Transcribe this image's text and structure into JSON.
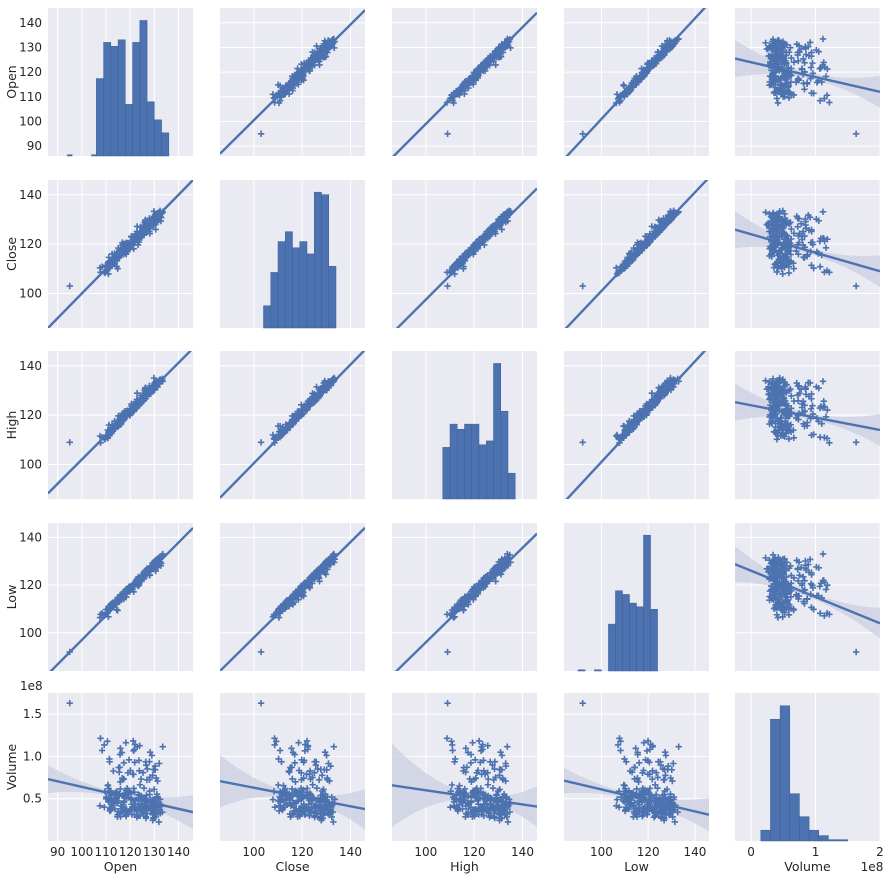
{
  "chart_data": {
    "type": "pairplot",
    "variables": [
      "Open",
      "Close",
      "High",
      "Low",
      "Volume"
    ],
    "volume_offset_label": "1e8",
    "colors": {
      "marker": "#4c72b0",
      "panel_bg": "#eaeaf2",
      "grid": "#ffffff",
      "ci_band": "#c7cde0"
    },
    "axes": {
      "Open": {
        "range": [
          86,
          146
        ],
        "ticks": [
          90,
          100,
          110,
          120,
          130,
          140
        ],
        "tick_labels": [
          "90",
          "100",
          "110",
          "120",
          "130",
          "140"
        ]
      },
      "Close": {
        "range": [
          86,
          146
        ],
        "ticks": [
          100,
          120,
          140
        ],
        "tick_labels": [
          "100",
          "120",
          "140"
        ]
      },
      "High": {
        "range": [
          86,
          146
        ],
        "ticks": [
          100,
          120,
          140
        ],
        "tick_labels": [
          "100",
          "120",
          "140"
        ]
      },
      "Low": {
        "range": [
          84,
          146
        ],
        "ticks": [
          100,
          120,
          140
        ],
        "tick_labels": [
          "100",
          "120",
          "140"
        ]
      },
      "Volume": {
        "range": [
          0.0,
          1.75
        ],
        "ticks": [
          0.5,
          1.0,
          1.5
        ],
        "tick_labels": [
          "0.5",
          "1.0",
          "1.5"
        ],
        "x_range": [
          -0.25,
          2.0
        ],
        "x_ticks": [
          0,
          1,
          2
        ],
        "x_tick_labels": [
          "0",
          "1",
          "2"
        ]
      }
    },
    "histograms": {
      "Open": {
        "bins": [
          [
            94,
            96,
            1
          ],
          [
            98,
            100,
            0
          ],
          [
            104,
            106,
            1
          ],
          [
            106,
            109,
            60
          ],
          [
            109,
            112,
            88
          ],
          [
            112,
            115,
            85
          ],
          [
            115,
            118,
            90
          ],
          [
            118,
            121,
            40
          ],
          [
            121,
            124,
            88
          ],
          [
            124,
            127,
            105
          ],
          [
            127,
            130,
            42
          ],
          [
            130,
            133,
            28
          ],
          [
            133,
            136,
            18
          ]
        ],
        "y_max": 110
      },
      "Close": {
        "bins": [
          [
            104,
            107,
            18
          ],
          [
            107,
            110,
            45
          ],
          [
            110,
            113,
            70
          ],
          [
            113,
            116,
            78
          ],
          [
            116,
            119,
            65
          ],
          [
            119,
            122,
            70
          ],
          [
            122,
            125,
            60
          ],
          [
            125,
            128,
            110
          ],
          [
            128,
            131,
            108
          ],
          [
            131,
            134,
            50
          ]
        ],
        "y_max": 115
      },
      "High": {
        "bins": [
          [
            107,
            110,
            40
          ],
          [
            110,
            113,
            58
          ],
          [
            113,
            116,
            54
          ],
          [
            116,
            119,
            58
          ],
          [
            119,
            122,
            58
          ],
          [
            122,
            125,
            42
          ],
          [
            125,
            128,
            45
          ],
          [
            128,
            131,
            105
          ],
          [
            131,
            134,
            68
          ],
          [
            134,
            137,
            20
          ]
        ],
        "y_max": 110
      },
      "Low": {
        "bins": [
          [
            90,
            93,
            1
          ],
          [
            97,
            100,
            1
          ],
          [
            100,
            103,
            0
          ],
          [
            103,
            106,
            38
          ],
          [
            106,
            109,
            65
          ],
          [
            109,
            112,
            62
          ],
          [
            112,
            115,
            55
          ],
          [
            115,
            118,
            52
          ],
          [
            118,
            121,
            110
          ],
          [
            121,
            124,
            50
          ],
          [
            124,
            127,
            0
          ]
        ],
        "y_max": 115
      },
      "Volume": {
        "bins": [
          [
            0.15,
            0.3,
            8
          ],
          [
            0.3,
            0.45,
            90
          ],
          [
            0.45,
            0.6,
            100
          ],
          [
            0.6,
            0.75,
            35
          ],
          [
            0.75,
            0.9,
            18
          ],
          [
            0.9,
            1.05,
            8
          ],
          [
            1.05,
            1.2,
            4
          ],
          [
            1.2,
            1.35,
            1
          ],
          [
            1.35,
            1.5,
            1
          ]
        ],
        "y_max": 105
      }
    },
    "regressions": {
      "Open|Close": {
        "slope": 0.97,
        "intercept": 3.5
      },
      "Open|High": {
        "slope": 0.98,
        "intercept": 1.0
      },
      "Open|Low": {
        "slope": 1.02,
        "intercept": -1.0
      },
      "Close|Open": {
        "slope": 1.0,
        "intercept": 0.0
      },
      "Close|High": {
        "slope": 0.98,
        "intercept": -0.5
      },
      "Close|Low": {
        "slope": 1.0,
        "intercept": 1.0
      },
      "High|Open": {
        "slope": 0.98,
        "intercept": 4.0
      },
      "High|Close": {
        "slope": 1.0,
        "intercept": 0.5
      },
      "High|Low": {
        "slope": 1.02,
        "intercept": -1.0
      },
      "Low|Open": {
        "slope": 1.02,
        "intercept": -5.0
      },
      "Low|Close": {
        "slope": 1.0,
        "intercept": -2.0
      },
      "Low|High": {
        "slope": 0.99,
        "intercept": -3.0
      },
      "Open|Volume": {
        "slope": -6.0,
        "intercept": 124.0
      },
      "Close|Volume": {
        "slope": -7.5,
        "intercept": 124.0
      },
      "High|Volume": {
        "slope": -5.0,
        "intercept": 124.0
      },
      "Low|Volume": {
        "slope": -11.0,
        "intercept": 126.0
      },
      "Volume|Open": {
        "slope": -0.0065,
        "intercept": 1.29
      },
      "Volume|Close": {
        "slope": -0.0055,
        "intercept": 1.18
      },
      "Volume|High": {
        "slope": -0.0042,
        "intercept": 1.02
      },
      "Volume|Low": {
        "slope": -0.0065,
        "intercept": 1.26
      }
    }
  }
}
